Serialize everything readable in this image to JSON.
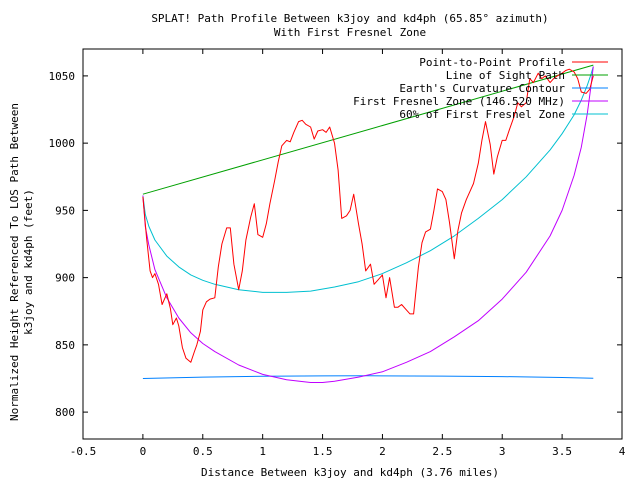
{
  "chart_data": {
    "type": "line",
    "title_lines": [
      "SPLAT! Path Profile Between k3joy and kd4ph (65.85° azimuth)",
      "With First Fresnel Zone"
    ],
    "xlabel": "Distance Between k3joy and kd4ph (3.76 miles)",
    "ylabel_lines": [
      "Normalized Height Referenced To LOS Path Between",
      "k3joy and kd4ph (feet)"
    ],
    "xlim": [
      -0.5,
      4
    ],
    "ylim": [
      780,
      1070
    ],
    "xticks": [
      -0.5,
      0,
      0.5,
      1,
      1.5,
      2,
      2.5,
      3,
      3.5,
      4
    ],
    "xtick_labels": [
      "-0.5",
      "0",
      "0.5",
      "1",
      "1.5",
      "2",
      "2.5",
      "3",
      "3.5",
      "4"
    ],
    "yticks": [
      800,
      850,
      900,
      950,
      1000,
      1050
    ],
    "ytick_labels": [
      "800",
      "850",
      "900",
      "950",
      "1000",
      "1050"
    ],
    "grid": false,
    "legend_position": "top-right",
    "series": [
      {
        "name": "Point-to-Point Profile",
        "color": "#ff0000",
        "x": [
          0,
          0.03,
          0.06,
          0.08,
          0.1,
          0.13,
          0.16,
          0.2,
          0.23,
          0.25,
          0.28,
          0.3,
          0.33,
          0.36,
          0.4,
          0.43,
          0.45,
          0.48,
          0.5,
          0.53,
          0.56,
          0.6,
          0.63,
          0.66,
          0.7,
          0.73,
          0.76,
          0.8,
          0.83,
          0.86,
          0.9,
          0.93,
          0.96,
          1.0,
          1.03,
          1.06,
          1.1,
          1.13,
          1.16,
          1.2,
          1.23,
          1.26,
          1.3,
          1.33,
          1.36,
          1.4,
          1.43,
          1.46,
          1.5,
          1.53,
          1.56,
          1.6,
          1.63,
          1.66,
          1.7,
          1.73,
          1.76,
          1.8,
          1.83,
          1.86,
          1.9,
          1.93,
          1.96,
          2.0,
          2.03,
          2.06,
          2.1,
          2.13,
          2.16,
          2.2,
          2.23,
          2.26,
          2.3,
          2.33,
          2.36,
          2.4,
          2.43,
          2.46,
          2.5,
          2.53,
          2.56,
          2.6,
          2.63,
          2.66,
          2.7,
          2.73,
          2.76,
          2.8,
          2.83,
          2.86,
          2.9,
          2.93,
          2.96,
          3.0,
          3.03,
          3.06,
          3.1,
          3.13,
          3.16,
          3.2,
          3.23,
          3.26,
          3.3,
          3.33,
          3.36,
          3.4,
          3.43,
          3.46,
          3.5,
          3.53,
          3.56,
          3.6,
          3.63,
          3.66,
          3.7,
          3.73,
          3.76
        ],
        "y": [
          960,
          930,
          905,
          900,
          903,
          895,
          880,
          888,
          877,
          865,
          870,
          864,
          848,
          840,
          837,
          845,
          850,
          860,
          876,
          882,
          884,
          885,
          908,
          925,
          937,
          937,
          910,
          891,
          905,
          928,
          945,
          955,
          932,
          930,
          940,
          955,
          972,
          986,
          998,
          1002,
          1001,
          1008,
          1016,
          1017,
          1014,
          1012,
          1003,
          1009,
          1010,
          1008,
          1012,
          1000,
          980,
          944,
          946,
          950,
          962,
          940,
          925,
          905,
          910,
          895,
          898,
          902,
          885,
          900,
          878,
          878,
          880,
          876,
          873,
          873,
          908,
          926,
          934,
          936,
          950,
          966,
          964,
          958,
          941,
          914,
          935,
          948,
          958,
          964,
          970,
          985,
          1002,
          1016,
          999,
          977,
          990,
          1002,
          1002,
          1010,
          1020,
          1030,
          1027,
          1030,
          1048,
          1045,
          1052,
          1048,
          1050,
          1045,
          1048,
          1050,
          1052,
          1054,
          1055,
          1053,
          1048,
          1038,
          1037,
          1040,
          1050
        ]
      },
      {
        "name": "Line of Sight Path",
        "color": "#00a000",
        "x": [
          0,
          3.76
        ],
        "y": [
          962,
          1058
        ]
      },
      {
        "name": "Earth's Curvature Contour",
        "color": "#0080ff",
        "x": [
          0,
          0.5,
          1.0,
          1.5,
          1.88,
          2.5,
          3.0,
          3.5,
          3.76
        ],
        "y": [
          825,
          826,
          826.6,
          826.9,
          827,
          826.8,
          826.4,
          825.7,
          825.2
        ]
      },
      {
        "name": "First Fresnel Zone (146.520 MHz)",
        "color": "#c000ff",
        "x": [
          0,
          0.02,
          0.05,
          0.1,
          0.2,
          0.3,
          0.4,
          0.5,
          0.6,
          0.8,
          1.0,
          1.2,
          1.4,
          1.5,
          1.6,
          1.8,
          2.0,
          2.2,
          2.4,
          2.6,
          2.8,
          3.0,
          3.2,
          3.4,
          3.5,
          3.6,
          3.66,
          3.71,
          3.74,
          3.76
        ],
        "y": [
          961,
          938,
          924,
          906,
          885,
          870,
          859,
          851,
          845,
          835,
          828,
          824,
          822,
          822,
          823,
          826,
          830,
          837,
          845,
          856,
          868,
          884,
          904,
          931,
          950,
          976,
          997,
          1022,
          1042,
          1057
        ]
      },
      {
        "name": "60% of First Fresnel Zone",
        "color": "#00c0d0",
        "x": [
          0,
          0.02,
          0.05,
          0.1,
          0.2,
          0.3,
          0.4,
          0.5,
          0.6,
          0.8,
          1.0,
          1.2,
          1.4,
          1.6,
          1.8,
          2.0,
          2.2,
          2.4,
          2.6,
          2.8,
          3.0,
          3.2,
          3.4,
          3.5,
          3.6,
          3.66,
          3.71,
          3.74,
          3.76
        ],
        "y": [
          961,
          947,
          938,
          928,
          916,
          908,
          902,
          898,
          895,
          891,
          889,
          889,
          890,
          893,
          897,
          903,
          911,
          920,
          931,
          944,
          958,
          975,
          995,
          1007,
          1021,
          1032,
          1043,
          1051,
          1057
        ]
      }
    ]
  }
}
